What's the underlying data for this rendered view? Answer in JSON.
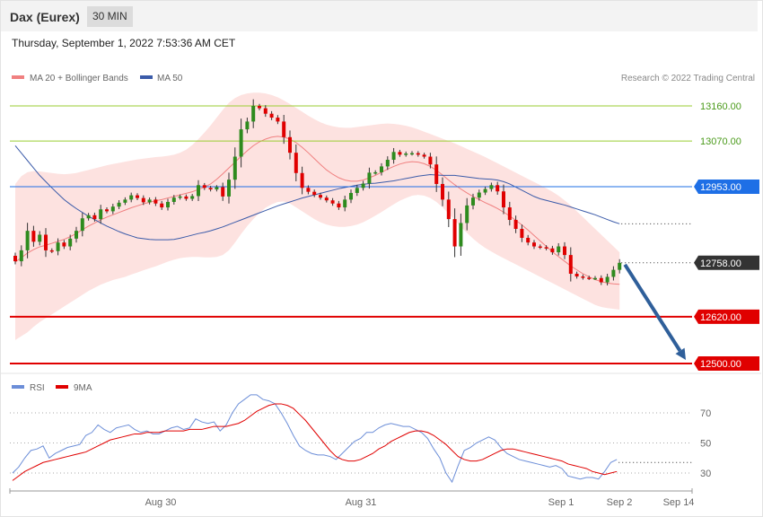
{
  "header": {
    "title": "Dax (Eurex)",
    "timeframe": "30 MIN"
  },
  "timestamp": "Thursday, September 1, 2022 7:53:36 AM CET",
  "copyright": "Research © 2022 Trading Central",
  "colors": {
    "bullish": "#2e8b1e",
    "bearish": "#e00000",
    "bands": "#fde2e0",
    "ma20": "#f08080",
    "ma50": "#3b5ba9",
    "resistance": "#9acd32",
    "pivot": "#1e6fe6",
    "support": "#e00000",
    "arrow": "#2f5f9a",
    "rsi": "#6c8ed8",
    "rsi_ma": "#e00000"
  },
  "chart_data": [
    {
      "type": "candlestick",
      "legend": [
        {
          "name": "MA 20 + Bollinger Bands",
          "color": "#f08080"
        },
        {
          "name": "MA 50",
          "color": "#3b5ba9"
        }
      ],
      "ylim": [
        12475,
        13200
      ],
      "x_ticks": [
        "Aug 30",
        "Aug 31",
        "Sep 1",
        "Sep 2",
        "Sep 14"
      ],
      "levels": [
        {
          "label": "13160.00",
          "value": 13160,
          "kind": "resistance"
        },
        {
          "label": "13070.00",
          "value": 13070,
          "kind": "resistance"
        },
        {
          "label": "12953.00",
          "value": 12953,
          "kind": "pivot"
        },
        {
          "label": "12758.00",
          "value": 12758,
          "kind": "last"
        },
        {
          "label": "12620.00",
          "value": 12620,
          "kind": "support"
        },
        {
          "label": "12500.00",
          "value": 12500,
          "kind": "support"
        }
      ],
      "close": [
        12762,
        12790,
        12840,
        12812,
        12830,
        12790,
        12788,
        12810,
        12800,
        12820,
        12840,
        12872,
        12880,
        12870,
        12895,
        12890,
        12902,
        12912,
        12920,
        12931,
        12924,
        12913,
        12920,
        12910,
        12900,
        12914,
        12925,
        12928,
        12922,
        12929,
        12957,
        12950,
        12946,
        12952,
        12928,
        12971,
        13030,
        13100,
        13120,
        13160,
        13154,
        13140,
        13130,
        13120,
        13080,
        13040,
        12988,
        12950,
        12940,
        12932,
        12925,
        12918,
        12910,
        12900,
        12920,
        12937,
        12950,
        12961,
        12989,
        12990,
        13005,
        13022,
        13042,
        13035,
        13038,
        13039,
        13035,
        13030,
        13010,
        12960,
        12920,
        12870,
        12800,
        12860,
        12905,
        12925,
        12938,
        12947,
        12957,
        12941,
        12900,
        12868,
        12845,
        12822,
        12810,
        12800,
        12798,
        12795,
        12785,
        12800,
        12778,
        12730,
        12723,
        12720,
        12719,
        12719,
        12708,
        12722,
        12740,
        12758
      ],
      "ma20": [
        12760,
        12771,
        12783,
        12792,
        12799,
        12803,
        12808,
        12813,
        12818,
        12825,
        12833,
        12843,
        12852,
        12860,
        12868,
        12875,
        12881,
        12887,
        12893,
        12899,
        12904,
        12909,
        12913,
        12917,
        12920,
        12924,
        12928,
        12932,
        12936,
        12940,
        12946,
        12952,
        12960,
        12972,
        12986,
        13001,
        13016,
        13031,
        13045,
        13058,
        13068,
        13075,
        13080,
        13082,
        13080,
        13075,
        13066,
        13054,
        13040,
        13025,
        13010,
        12996,
        12985,
        12976,
        12970,
        12967,
        12967,
        12970,
        12976,
        12982,
        12990,
        12998,
        13005,
        13011,
        13015,
        13017,
        13016,
        13012,
        13005,
        12995,
        12983,
        12970,
        12958,
        12947,
        12937,
        12928,
        12920,
        12912,
        12905,
        12897,
        12888,
        12878,
        12867,
        12855,
        12842,
        12828,
        12814,
        12800,
        12786,
        12774,
        12762,
        12750,
        12740,
        12730,
        12722,
        12715,
        12710,
        12706,
        12704,
        12703
      ],
      "bb_upper": [
        12960,
        12980,
        12990,
        12993,
        12992,
        12990,
        12988,
        12986,
        12985,
        12986,
        12988,
        12992,
        12996,
        13000,
        13004,
        13008,
        13011,
        13014,
        13017,
        13020,
        13023,
        13025,
        13027,
        13029,
        13030,
        13032,
        13035,
        13040,
        13048,
        13060,
        13075,
        13092,
        13110,
        13130,
        13150,
        13168,
        13180,
        13188,
        13192,
        13194,
        13194,
        13192,
        13188,
        13182,
        13174,
        13165,
        13155,
        13145,
        13135,
        13126,
        13118,
        13112,
        13108,
        13105,
        13104,
        13104,
        13106,
        13108,
        13110,
        13112,
        13114,
        13115,
        13114,
        13112,
        13109,
        13105,
        13100,
        13094,
        13088,
        13082,
        13076,
        13070,
        13064,
        13057,
        13050,
        13043,
        13036,
        13029,
        13021,
        13013,
        13005,
        12997,
        12989,
        12981,
        12973,
        12965,
        12957,
        12949,
        12940,
        12930,
        12918,
        12905,
        12890,
        12875,
        12860,
        12845,
        12830,
        12815,
        12800,
        12785
      ],
      "bb_lower": [
        12560,
        12570,
        12580,
        12594,
        12606,
        12616,
        12626,
        12636,
        12646,
        12656,
        12666,
        12676,
        12686,
        12694,
        12702,
        12708,
        12714,
        12718,
        12722,
        12728,
        12733,
        12739,
        12744,
        12749,
        12755,
        12761,
        12766,
        12770,
        12772,
        12773,
        12773,
        12772,
        12772,
        12773,
        12778,
        12790,
        12810,
        12832,
        12852,
        12870,
        12886,
        12899,
        12908,
        12914,
        12915,
        12910,
        12900,
        12890,
        12880,
        12870,
        12862,
        12856,
        12852,
        12850,
        12850,
        12852,
        12856,
        12862,
        12870,
        12879,
        12888,
        12898,
        12908,
        12917,
        12924,
        12930,
        12932,
        12930,
        12924,
        12914,
        12900,
        12884,
        12867,
        12850,
        12835,
        12820,
        12807,
        12796,
        12787,
        12778,
        12770,
        12762,
        12754,
        12746,
        12738,
        12730,
        12722,
        12714,
        12706,
        12698,
        12690,
        12682,
        12674,
        12666,
        12658,
        12650,
        12645,
        12642,
        12640,
        12638
      ],
      "ma50": [
        13058,
        13039,
        13020,
        13001,
        12982,
        12966,
        12950,
        12935,
        12920,
        12908,
        12897,
        12887,
        12877,
        12869,
        12860,
        12852,
        12845,
        12838,
        12832,
        12827,
        12822,
        12820,
        12818,
        12817,
        12817,
        12817,
        12818,
        12821,
        12825,
        12829,
        12833,
        12836,
        12840,
        12845,
        12850,
        12856,
        12862,
        12868,
        12874,
        12880,
        12886,
        12892,
        12898,
        12904,
        12909,
        12914,
        12919,
        12924,
        12928,
        12932,
        12936,
        12940,
        12944,
        12948,
        12951,
        12954,
        12957,
        12959,
        12961,
        12962,
        12964,
        12966,
        12968,
        12971,
        12974,
        12977,
        12980,
        12982,
        12984,
        12983,
        12982,
        12982,
        12982,
        12980,
        12978,
        12976,
        12974,
        12973,
        12972,
        12970,
        12966,
        12960,
        12952,
        12944,
        12936,
        12928,
        12922,
        12918,
        12914,
        12910,
        12906,
        12901,
        12896,
        12891,
        12886,
        12881,
        12875,
        12869,
        12863,
        12858
      ]
    },
    {
      "type": "line",
      "legend": [
        {
          "name": "RSI",
          "color": "#6c8ed8"
        },
        {
          "name": "9MA",
          "color": "#e00000"
        }
      ],
      "ylim": [
        15,
        90
      ],
      "y_ticks": [
        70,
        50,
        30
      ],
      "rsi": [
        30,
        34,
        40,
        45,
        46,
        48,
        40,
        43,
        45,
        47,
        48,
        49,
        55,
        57,
        62,
        59,
        57,
        60,
        61,
        62,
        59,
        57,
        58,
        56,
        56,
        58,
        60,
        61,
        59,
        60,
        66,
        64,
        63,
        64,
        58,
        62,
        70,
        76,
        79,
        82,
        82,
        79,
        78,
        76,
        70,
        63,
        55,
        48,
        45,
        43,
        42,
        42,
        41,
        39,
        43,
        47,
        51,
        53,
        57,
        57,
        60,
        62,
        63,
        62,
        61,
        61,
        59,
        57,
        53,
        46,
        40,
        30,
        24,
        35,
        45,
        47,
        50,
        52,
        54,
        52,
        47,
        43,
        41,
        39,
        38,
        37,
        36,
        35,
        34,
        35,
        33,
        28,
        27,
        26,
        27,
        27,
        26,
        31,
        37,
        39
      ],
      "ma": [
        25,
        28,
        31,
        33,
        35,
        37,
        38,
        39,
        40,
        41,
        42,
        43,
        44,
        46,
        48,
        50,
        52,
        53,
        54,
        55,
        56,
        56,
        57,
        57,
        57,
        58,
        58,
        58,
        58,
        59,
        59,
        59,
        60,
        61,
        61,
        61,
        62,
        63,
        65,
        68,
        71,
        73,
        75,
        76,
        76,
        75,
        73,
        69,
        65,
        60,
        55,
        50,
        45,
        41,
        39,
        38,
        38,
        39,
        41,
        43,
        46,
        48,
        51,
        53,
        55,
        57,
        58,
        58,
        57,
        55,
        52,
        49,
        45,
        41,
        39,
        38,
        38,
        39,
        41,
        43,
        45,
        46,
        46,
        45,
        44,
        43,
        42,
        41,
        40,
        39,
        38,
        36,
        35,
        34,
        33,
        31,
        30,
        29,
        30,
        31
      ]
    }
  ]
}
